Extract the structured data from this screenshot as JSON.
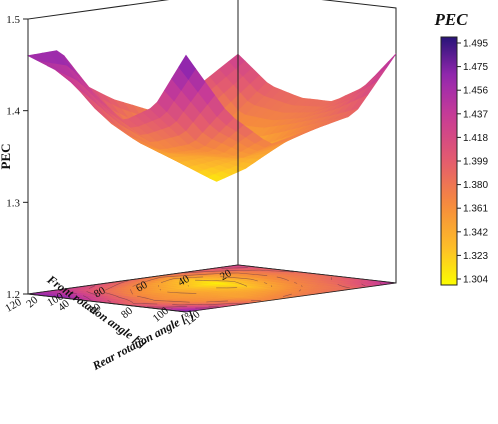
{
  "chart_data": {
    "type": "surface3d",
    "title": "",
    "xlabel": "Front rotation angle [°]",
    "ylabel": "Rear rotation angle [°]",
    "zlabel": "PEC",
    "x_ticks": [
      "20",
      "40",
      "60",
      "80",
      "100",
      "120"
    ],
    "y_ticks": [
      "20",
      "40",
      "60",
      "80",
      "100",
      "120"
    ],
    "z_ticks": [
      "1.2",
      "1.3",
      "1.4",
      "1.5"
    ],
    "zlim": [
      1.2,
      1.5
    ],
    "x": [
      20,
      40,
      60,
      80,
      100,
      120
    ],
    "y": [
      20,
      40,
      60,
      80,
      100,
      120
    ],
    "z_grid": [
      [
        1.43,
        1.4,
        1.39,
        1.39,
        1.41,
        1.45
      ],
      [
        1.4,
        1.36,
        1.36,
        1.37,
        1.38,
        1.39
      ],
      [
        1.38,
        1.33,
        1.31,
        1.33,
        1.36,
        1.38
      ],
      [
        1.4,
        1.36,
        1.34,
        1.35,
        1.35,
        1.37
      ],
      [
        1.43,
        1.39,
        1.37,
        1.36,
        1.37,
        1.41
      ],
      [
        1.46,
        1.47,
        1.43,
        1.4,
        1.42,
        1.48
      ]
    ],
    "colorbar": {
      "title": "PEC",
      "ticks": [
        "1.495",
        "1.475",
        "1.456",
        "1.437",
        "1.418",
        "1.399",
        "1.380",
        "1.361",
        "1.342",
        "1.323",
        "1.304"
      ],
      "min": 1.304,
      "max": 1.495,
      "colormap": "plasma"
    },
    "grid": true
  }
}
